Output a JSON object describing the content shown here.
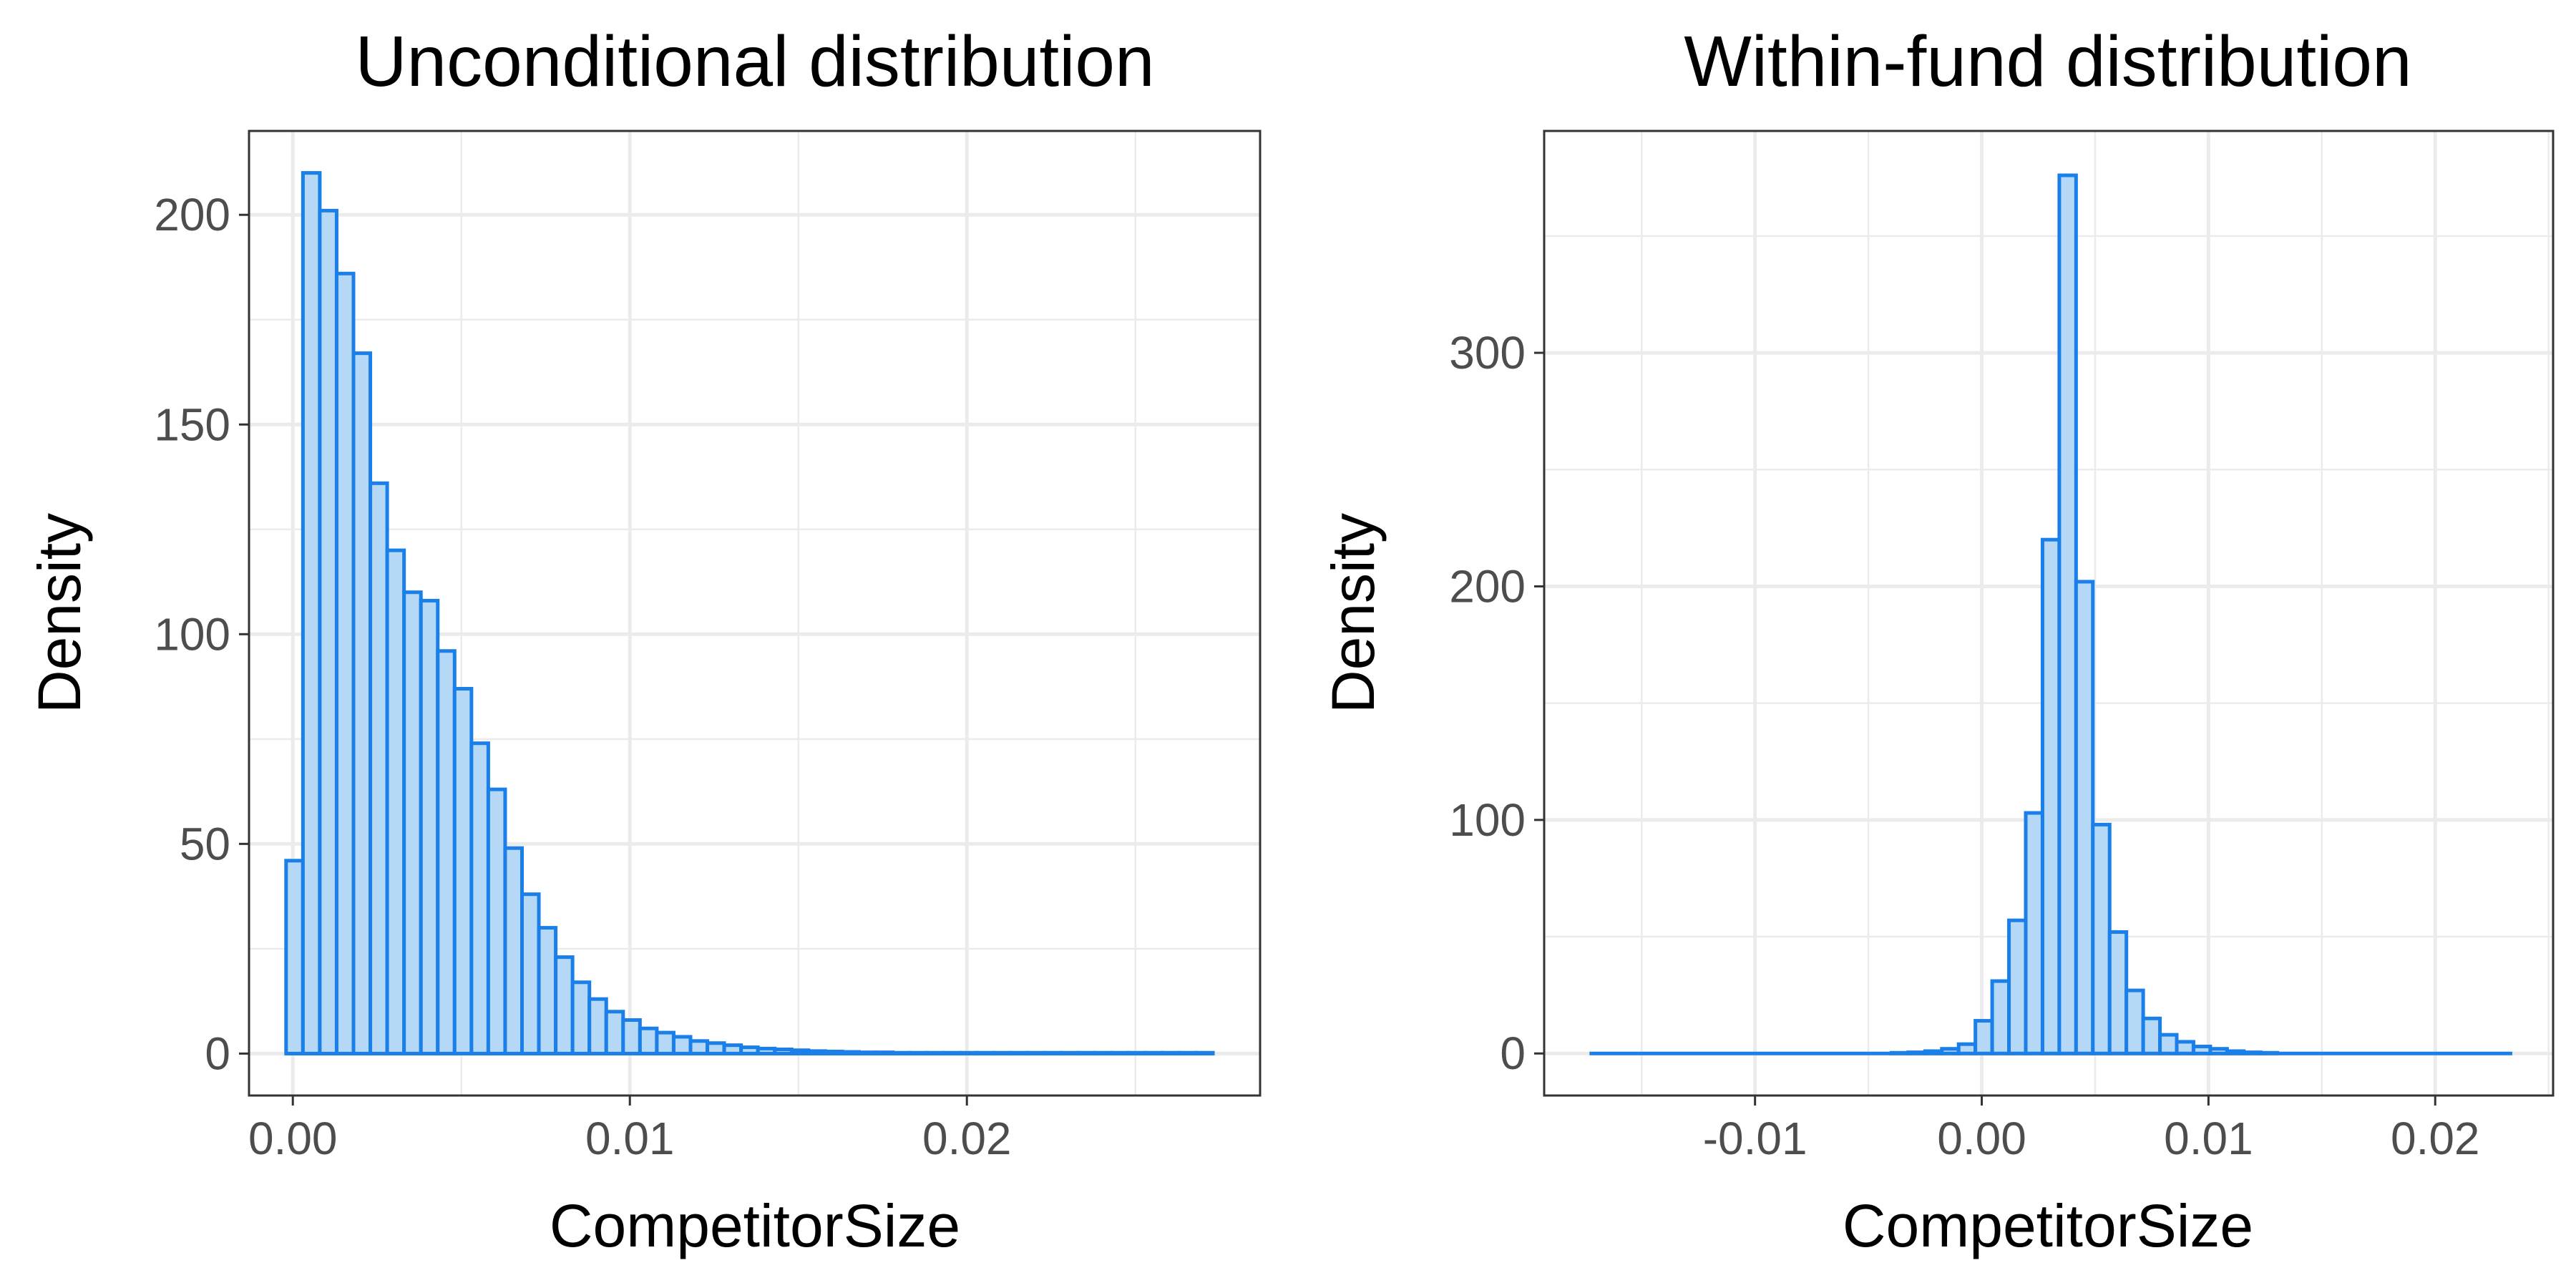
{
  "colors": {
    "bar_fill": "#b5d8f7",
    "bar_stroke": "#1a7fe8"
  },
  "chart_data": [
    {
      "type": "bar",
      "title": "Unconditional distribution",
      "xlabel": "CompetitorSize",
      "ylabel": "Density",
      "xlim": [
        -0.0013,
        0.0287
      ],
      "ylim": [
        -10,
        220
      ],
      "xticks": [
        {
          "value": 0.0,
          "label": "0.00"
        },
        {
          "value": 0.01,
          "label": "0.01"
        },
        {
          "value": 0.02,
          "label": "0.02"
        }
      ],
      "yticks": [
        {
          "value": 0,
          "label": "0"
        },
        {
          "value": 50,
          "label": "50"
        },
        {
          "value": 100,
          "label": "100"
        },
        {
          "value": 150,
          "label": "150"
        },
        {
          "value": 200,
          "label": "200"
        }
      ],
      "grid": true,
      "bin_start": -0.0002,
      "bin_width": 0.0005,
      "values": [
        46,
        210,
        201,
        186,
        167,
        136,
        120,
        110,
        108,
        96,
        87,
        74,
        63,
        49,
        38,
        30,
        23,
        17,
        13,
        10,
        8,
        6,
        5,
        4,
        3,
        2.5,
        2,
        1.5,
        1.2,
        1,
        0.8,
        0.6,
        0.5,
        0.4,
        0.3,
        0.3,
        0.2,
        0.2,
        0.2,
        0.2,
        0.2,
        0.2,
        0.2,
        0.2,
        0.2,
        0.2,
        0.2,
        0.2,
        0.2,
        0.2,
        0.2,
        0.2,
        0.2,
        0.2,
        0.2
      ]
    },
    {
      "type": "bar",
      "title": "Within-fund distribution",
      "xlabel": "CompetitorSize",
      "ylabel": "Density",
      "xlim": [
        -0.0193,
        0.0252
      ],
      "ylim": [
        -18,
        395
      ],
      "xticks": [
        {
          "value": -0.01,
          "label": "-0.01"
        },
        {
          "value": 0.0,
          "label": "0.00"
        },
        {
          "value": 0.01,
          "label": "0.01"
        },
        {
          "value": 0.02,
          "label": "0.02"
        }
      ],
      "yticks": [
        {
          "value": 0,
          "label": "0"
        },
        {
          "value": 100,
          "label": "100"
        },
        {
          "value": 200,
          "label": "200"
        },
        {
          "value": 300,
          "label": "300"
        }
      ],
      "grid": true,
      "bin_start": -0.0173,
      "bin_width": 0.00074,
      "values": [
        0,
        0,
        0,
        0,
        0,
        0,
        0,
        0,
        0,
        0,
        0,
        0,
        0,
        0,
        0,
        0,
        0,
        0,
        0.3,
        0.5,
        1,
        2,
        4,
        14,
        31,
        57,
        103,
        220,
        376,
        202,
        98,
        52,
        27,
        15,
        8,
        5,
        3,
        2,
        1,
        0.5,
        0.3,
        0,
        0,
        0,
        0,
        0,
        0,
        0,
        0,
        0,
        0,
        0,
        0,
        0,
        0
      ]
    }
  ]
}
